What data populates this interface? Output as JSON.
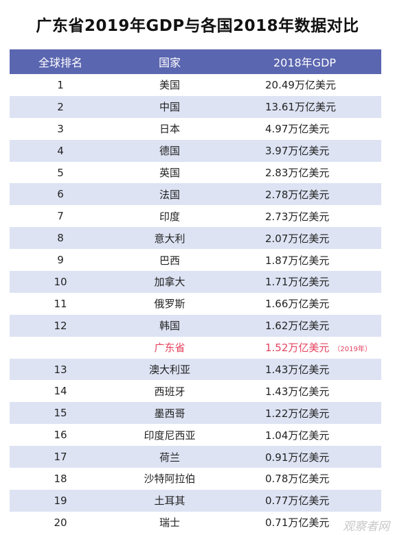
{
  "title": "广东省2019年GDP与各国2018年数据对比",
  "header": {
    "rank": "全球排名",
    "country": "国家",
    "gdp": "2018年GDP"
  },
  "rows": [
    {
      "rank": "1",
      "country": "美国",
      "gdp": "20.49万亿美元",
      "note": ""
    },
    {
      "rank": "2",
      "country": "中国",
      "gdp": "13.61万亿美元",
      "note": ""
    },
    {
      "rank": "3",
      "country": "日本",
      "gdp": "4.97万亿美元",
      "note": ""
    },
    {
      "rank": "4",
      "country": "德国",
      "gdp": "3.97万亿美元",
      "note": ""
    },
    {
      "rank": "5",
      "country": "英国",
      "gdp": "2.83万亿美元",
      "note": ""
    },
    {
      "rank": "6",
      "country": "法国",
      "gdp": "2.78万亿美元",
      "note": ""
    },
    {
      "rank": "7",
      "country": "印度",
      "gdp": "2.73万亿美元",
      "note": ""
    },
    {
      "rank": "8",
      "country": "意大利",
      "gdp": "2.07万亿美元",
      "note": ""
    },
    {
      "rank": "9",
      "country": "巴西",
      "gdp": "1.87万亿美元",
      "note": ""
    },
    {
      "rank": "10",
      "country": "加拿大",
      "gdp": "1.71万亿美元",
      "note": ""
    },
    {
      "rank": "11",
      "country": "俄罗斯",
      "gdp": "1.66万亿美元",
      "note": ""
    },
    {
      "rank": "12",
      "country": "韩国",
      "gdp": "1.62万亿美元",
      "note": ""
    },
    {
      "rank": "",
      "country": "广东省",
      "gdp": "1.52万亿美元",
      "note": "（2019年）",
      "highlight": true
    },
    {
      "rank": "13",
      "country": "澳大利亚",
      "gdp": "1.43万亿美元",
      "note": ""
    },
    {
      "rank": "14",
      "country": "西班牙",
      "gdp": "1.43万亿美元",
      "note": ""
    },
    {
      "rank": "15",
      "country": "墨西哥",
      "gdp": "1.22万亿美元",
      "note": ""
    },
    {
      "rank": "16",
      "country": "印度尼西亚",
      "gdp": "1.04万亿美元",
      "note": ""
    },
    {
      "rank": "17",
      "country": "荷兰",
      "gdp": "0.91万亿美元",
      "note": ""
    },
    {
      "rank": "18",
      "country": "沙特阿拉伯",
      "gdp": "0.78万亿美元",
      "note": ""
    },
    {
      "rank": "19",
      "country": "土耳其",
      "gdp": "0.77万亿美元",
      "note": ""
    },
    {
      "rank": "20",
      "country": "瑞士",
      "gdp": "0.71万亿美元",
      "note": ""
    }
  ],
  "watermark": "观察者网",
  "colors": {
    "header_bg": "#5b66b0",
    "stripe_bg": "#dde3f3",
    "highlight_text": "#e4425e"
  }
}
